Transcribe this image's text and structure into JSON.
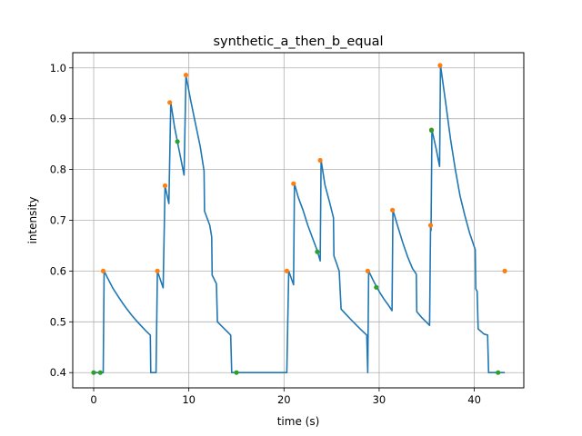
{
  "chart_data": {
    "type": "line",
    "title": "synthetic_a_then_b_equal",
    "xlabel": "time (s)",
    "ylabel": "intensity",
    "xlim": [
      -2.2,
      45.2
    ],
    "ylim": [
      0.37,
      1.03
    ],
    "xticks": [
      0,
      10,
      20,
      30,
      40
    ],
    "yticks": [
      0.4,
      0.5,
      0.6,
      0.7,
      0.8,
      0.9,
      1.0
    ],
    "grid": true,
    "series": [
      {
        "kind": "line",
        "color": "#1f77b4",
        "points": [
          [
            0.0,
            0.4
          ],
          [
            0.7,
            0.4
          ],
          [
            1.0,
            0.4
          ],
          [
            1.1,
            0.6
          ],
          [
            1.5,
            0.585
          ],
          [
            2.0,
            0.567
          ],
          [
            2.5,
            0.552
          ],
          [
            3.0,
            0.538
          ],
          [
            3.5,
            0.525
          ],
          [
            4.0,
            0.513
          ],
          [
            4.5,
            0.502
          ],
          [
            5.0,
            0.492
          ],
          [
            5.5,
            0.482
          ],
          [
            5.95,
            0.474
          ],
          [
            6.0,
            0.4
          ],
          [
            6.55,
            0.4
          ],
          [
            6.7,
            0.6
          ],
          [
            7.3,
            0.567
          ],
          [
            7.5,
            0.768
          ],
          [
            7.9,
            0.733
          ],
          [
            8.1,
            0.932
          ],
          [
            8.5,
            0.883
          ],
          [
            9.0,
            0.836
          ],
          [
            9.5,
            0.789
          ],
          [
            9.7,
            0.985
          ],
          [
            10.2,
            0.935
          ],
          [
            10.7,
            0.89
          ],
          [
            11.2,
            0.845
          ],
          [
            11.6,
            0.797
          ],
          [
            11.65,
            0.718
          ],
          [
            12.2,
            0.69
          ],
          [
            12.4,
            0.667
          ],
          [
            12.45,
            0.592
          ],
          [
            12.9,
            0.575
          ],
          [
            13.0,
            0.5
          ],
          [
            14.4,
            0.474
          ],
          [
            14.5,
            0.4
          ],
          [
            20.3,
            0.4
          ],
          [
            20.5,
            0.6
          ],
          [
            21.0,
            0.573
          ],
          [
            21.1,
            0.772
          ],
          [
            21.5,
            0.745
          ],
          [
            22.0,
            0.72
          ],
          [
            22.5,
            0.69
          ],
          [
            23.0,
            0.665
          ],
          [
            23.5,
            0.64
          ],
          [
            23.8,
            0.62
          ],
          [
            23.9,
            0.818
          ],
          [
            24.3,
            0.77
          ],
          [
            24.8,
            0.735
          ],
          [
            25.2,
            0.705
          ],
          [
            25.25,
            0.63
          ],
          [
            25.8,
            0.6
          ],
          [
            26.0,
            0.525
          ],
          [
            27.0,
            0.505
          ],
          [
            28.0,
            0.486
          ],
          [
            28.7,
            0.474
          ],
          [
            28.8,
            0.4
          ],
          [
            28.9,
            0.6
          ],
          [
            29.5,
            0.577
          ],
          [
            30.0,
            0.56
          ],
          [
            30.5,
            0.545
          ],
          [
            31.0,
            0.532
          ],
          [
            31.35,
            0.522
          ],
          [
            31.45,
            0.72
          ],
          [
            32.0,
            0.685
          ],
          [
            32.5,
            0.655
          ],
          [
            33.0,
            0.628
          ],
          [
            33.5,
            0.605
          ],
          [
            33.9,
            0.594
          ],
          [
            33.95,
            0.52
          ],
          [
            34.5,
            0.508
          ],
          [
            35.3,
            0.493
          ],
          [
            35.4,
            0.69
          ],
          [
            35.45,
            0.68
          ],
          [
            35.55,
            0.878
          ],
          [
            36.0,
            0.84
          ],
          [
            36.35,
            0.806
          ],
          [
            36.45,
            1.005
          ],
          [
            37.0,
            0.93
          ],
          [
            37.5,
            0.86
          ],
          [
            38.0,
            0.8
          ],
          [
            38.5,
            0.748
          ],
          [
            39.0,
            0.71
          ],
          [
            39.5,
            0.675
          ],
          [
            40.1,
            0.642
          ],
          [
            40.15,
            0.565
          ],
          [
            40.3,
            0.56
          ],
          [
            40.4,
            0.486
          ],
          [
            41.0,
            0.476
          ],
          [
            41.4,
            0.474
          ],
          [
            41.5,
            0.4
          ],
          [
            43.2,
            0.4
          ]
        ]
      },
      {
        "kind": "scatter",
        "color": "#ff7f0e",
        "points": [
          [
            1.0,
            0.6
          ],
          [
            6.7,
            0.6
          ],
          [
            7.5,
            0.768
          ],
          [
            8.0,
            0.932
          ],
          [
            9.7,
            0.986
          ],
          [
            20.3,
            0.6
          ],
          [
            21.0,
            0.772
          ],
          [
            23.8,
            0.818
          ],
          [
            28.8,
            0.6
          ],
          [
            31.4,
            0.72
          ],
          [
            35.4,
            0.69
          ],
          [
            35.5,
            0.878
          ],
          [
            36.4,
            1.005
          ],
          [
            43.2,
            0.6
          ]
        ]
      },
      {
        "kind": "scatter",
        "color": "#2ca02c",
        "points": [
          [
            0.0,
            0.4
          ],
          [
            0.7,
            0.4
          ],
          [
            8.8,
            0.855
          ],
          [
            15.0,
            0.4
          ],
          [
            23.5,
            0.638
          ],
          [
            29.7,
            0.568
          ],
          [
            35.5,
            0.877
          ],
          [
            42.5,
            0.4
          ]
        ]
      }
    ]
  }
}
